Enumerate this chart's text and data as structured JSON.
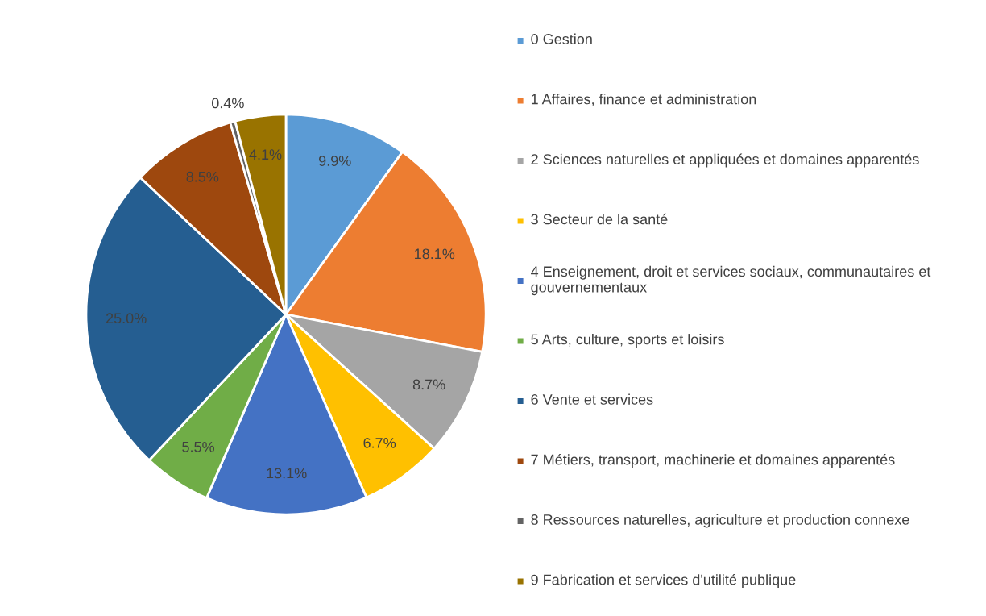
{
  "chart_data": {
    "type": "pie",
    "categories": [
      "0 Gestion",
      "1 Affaires, finance et administration",
      "2 Sciences naturelles et appliquées et domaines apparentés",
      "3 Secteur de la santé",
      "4 Enseignement, droit et services sociaux, communautaires et gouvernementaux",
      "5 Arts, culture, sports et loisirs",
      "6 Vente et services",
      "7 Métiers, transport, machinerie et domaines apparentés",
      "8 Ressources naturelles, agriculture et production connexe",
      "9 Fabrication et services d'utilité publique"
    ],
    "values": [
      9.9,
      18.1,
      8.7,
      6.7,
      13.1,
      5.5,
      25.0,
      8.5,
      0.4,
      4.1
    ],
    "value_labels": [
      "9.9%",
      "18.1%",
      "8.7%",
      "6.7%",
      "13.1%",
      "5.5%",
      "25.0%",
      "8.5%",
      "0.4%",
      "4.1%"
    ],
    "colors": [
      "#5b9bd5",
      "#ed7d31",
      "#a5a5a5",
      "#ffc000",
      "#4472c4",
      "#70ad47",
      "#255e91",
      "#9e480e",
      "#636363",
      "#997300"
    ],
    "legend": "right"
  }
}
